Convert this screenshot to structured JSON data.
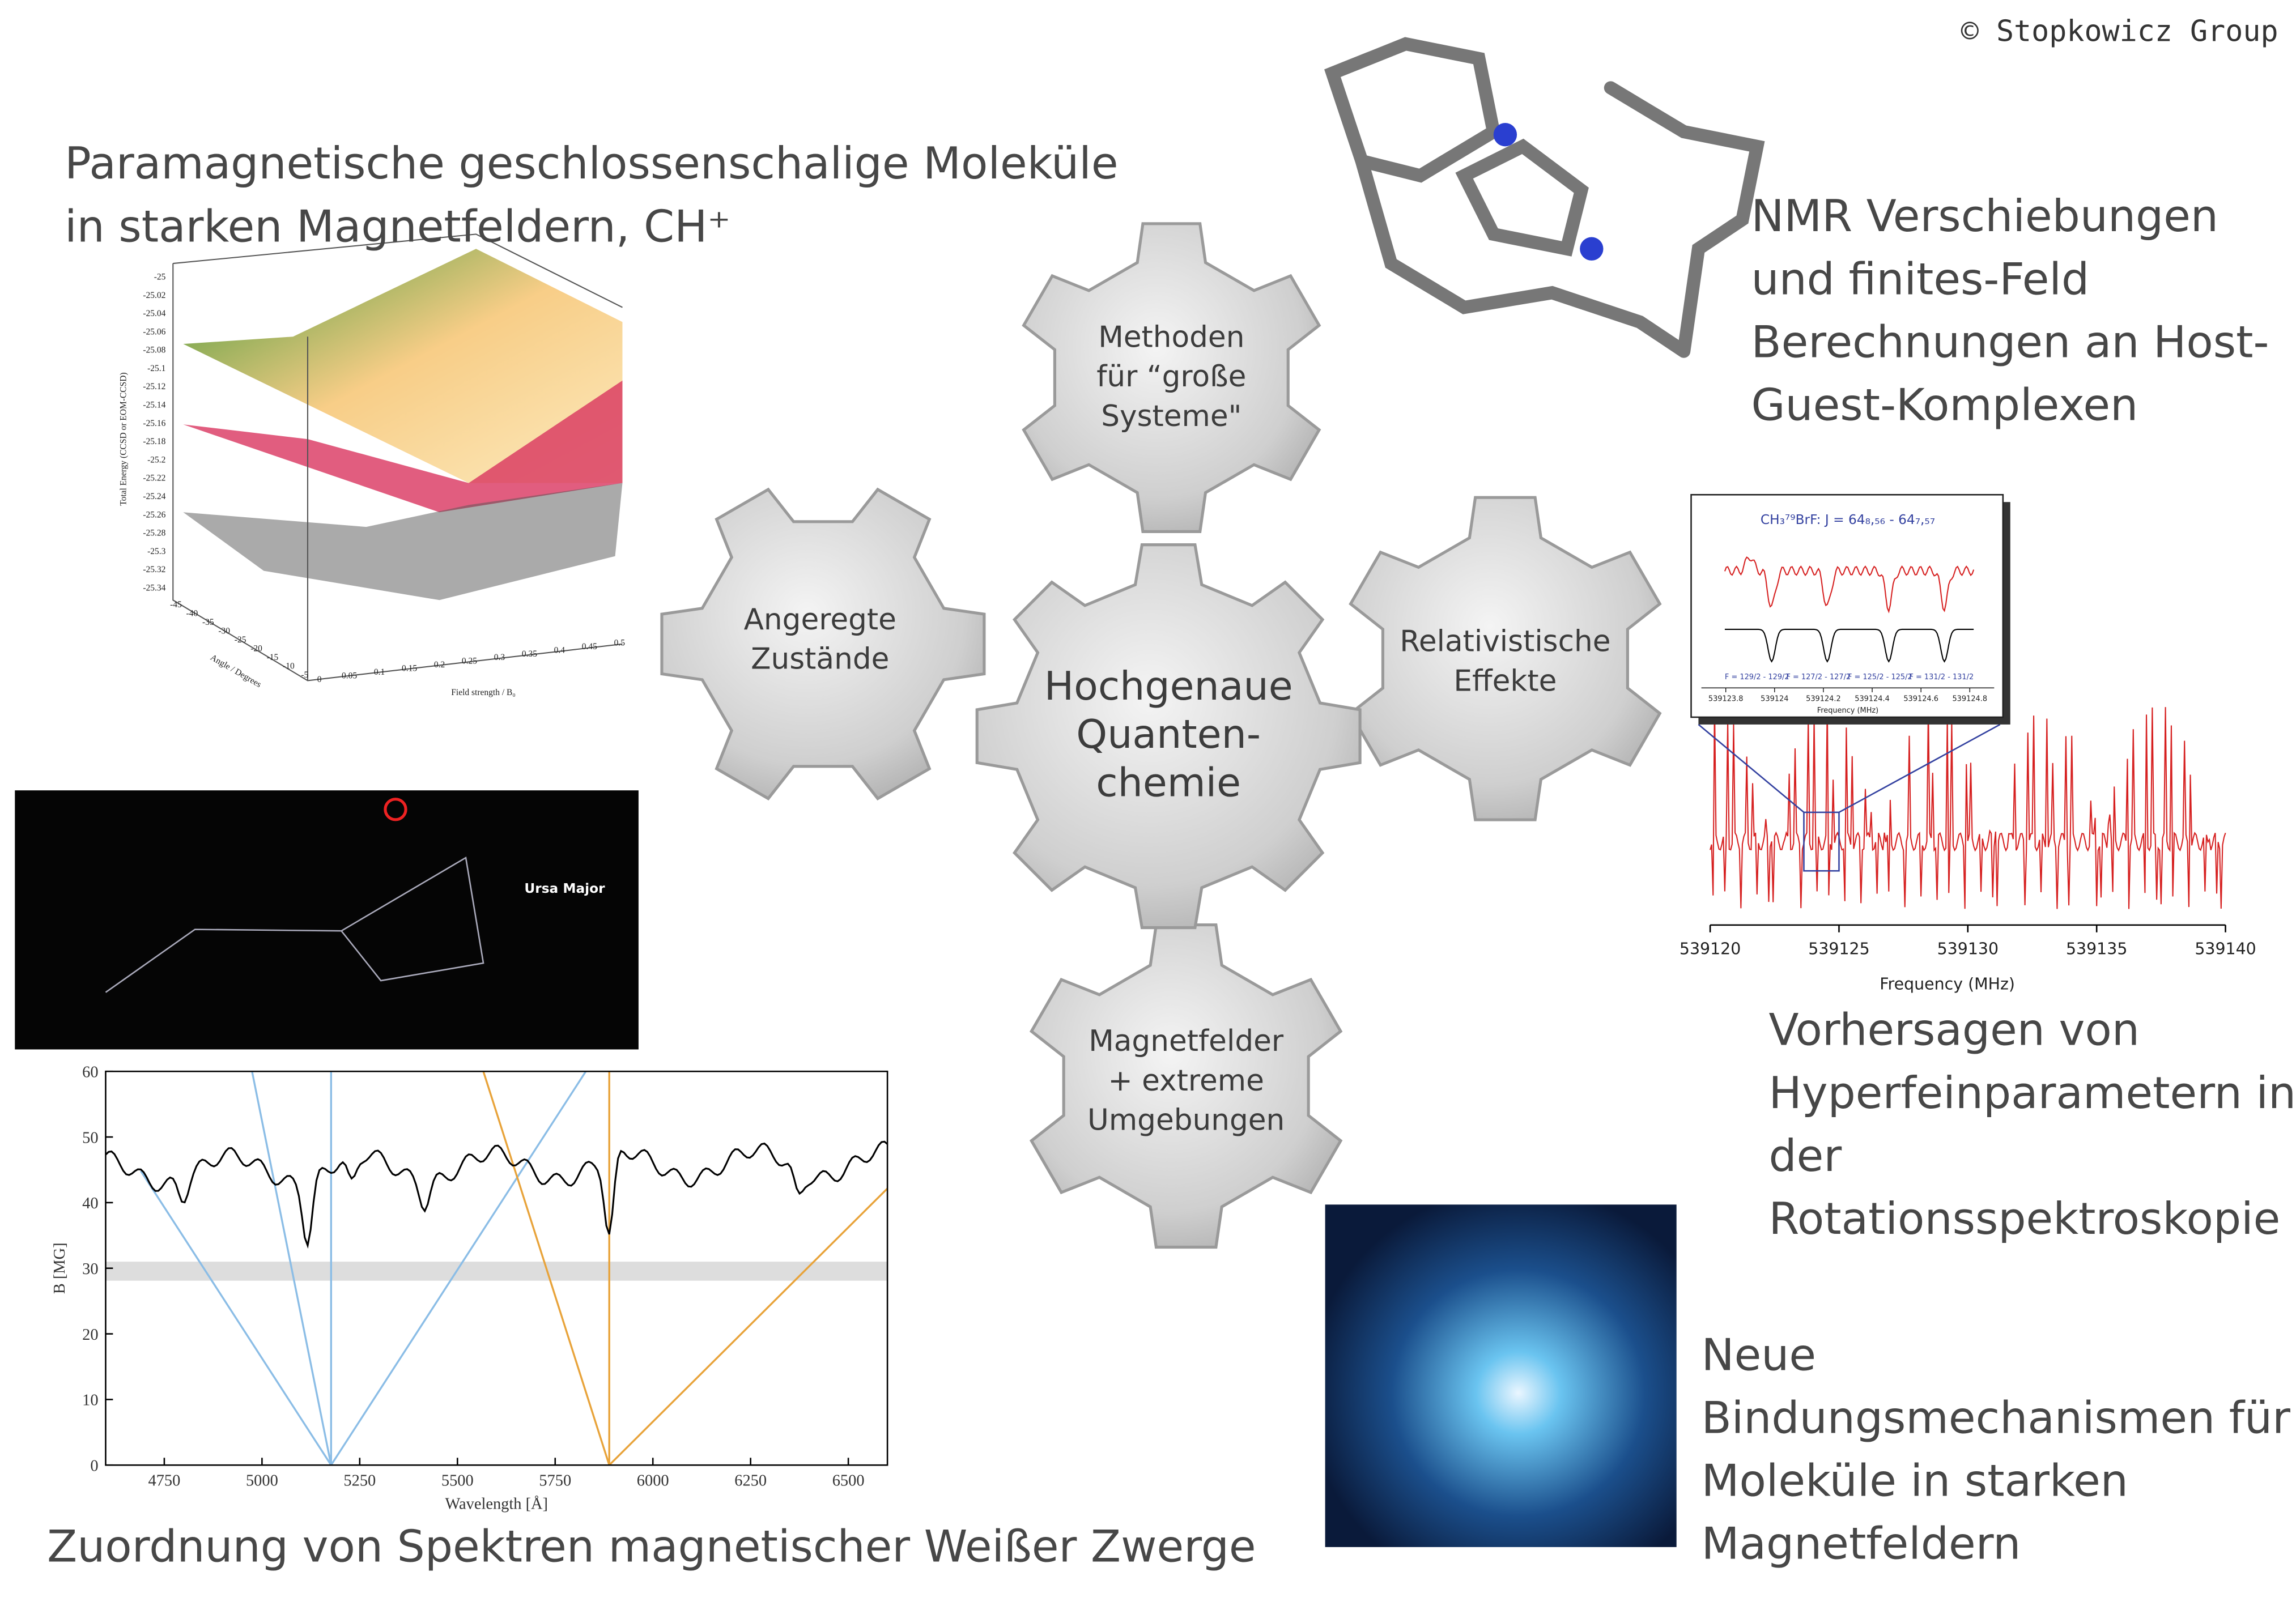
{
  "copyright": "© Stopkowicz Group",
  "center": {
    "lines": [
      "Hochgenaue",
      "Quanten-",
      "chemie"
    ]
  },
  "gears": [
    {
      "lines": [
        "Methoden",
        "für  “große",
        "Systeme\""
      ]
    },
    {
      "lines": [
        "Angeregte",
        "Zustände"
      ]
    },
    {
      "lines": [
        "Relativistische",
        "Effekte"
      ]
    },
    {
      "lines": [
        "Magnetfelder",
        "+ extreme",
        "Umgebungen"
      ]
    }
  ],
  "topics": [
    {
      "lines": [
        "Paramagnetische geschlossenschalige Moleküle",
        "in starken Magnetfeldern, CH⁺"
      ]
    },
    {
      "lines": [
        "NMR Verschiebungen",
        "und finites-Feld",
        "Berechnungen an Host-",
        "Guest-Komplexen"
      ]
    },
    {
      "lines": [
        "Vorhersagen von",
        "Hyperfeinparametern in",
        "der",
        "Rotationsspektroskopie"
      ]
    },
    {
      "lines": [
        "Neue",
        "Bindungsmechanismen für",
        "Moleküle in starken",
        "Magnetfeldern"
      ]
    },
    {
      "lines": [
        "Zuordnung von Spektren magnetischer Weißer Zwerge"
      ]
    }
  ],
  "surface_plot": {
    "y_label": "Total Energy (CCSD or EOM-CCSD)",
    "yticks": [
      -25,
      -25.02,
      -25.04,
      -25.06,
      -25.08,
      -25.1,
      -25.12,
      -25.14,
      -25.16,
      -25.18,
      -25.2,
      -25.22,
      -25.24,
      -25.26,
      -25.28,
      -25.3,
      -25.32,
      -25.34
    ],
    "x_label": "Field strength / B₀",
    "xticks": [
      0,
      0.05,
      0.1,
      0.15,
      0.2,
      0.25,
      0.3,
      0.35,
      0.4,
      0.45,
      0.5
    ],
    "z_label": "Angle / Degrees",
    "zticks": [
      -45,
      -40,
      -35,
      -30,
      -25,
      -20,
      -15,
      -10,
      -5
    ]
  },
  "sky_map": {
    "label": "Ursa Major"
  },
  "white_dwarf_plot": {
    "x_label": "Wavelength [Å]",
    "y_label": "B [MG]",
    "xlim": [
      4600,
      6600
    ],
    "ylim": [
      0,
      60
    ],
    "xticks": [
      4750,
      5000,
      5250,
      5500,
      5750,
      6000,
      6250,
      6500
    ],
    "yticks": [
      0,
      10,
      20,
      30,
      40,
      50,
      60
    ]
  },
  "spectrum_plot": {
    "x_label": "Frequency  (MHz)",
    "xlim": [
      539120,
      539140
    ],
    "xticks": [
      539120,
      539125,
      539130,
      539135,
      539140
    ],
    "inset": {
      "title": "CH₃⁷⁹BrF: J = 64₈,₅₆ - 64₇,₅₇",
      "labels": [
        "F = 129/2 - 129/2",
        "F = 127/2 - 127/2",
        "F = 125/2 - 125/2",
        "F = 131/2 - 131/2"
      ],
      "xlim": [
        539123.7,
        539124.9
      ],
      "xticks": [
        539123.8,
        539124,
        539124.2,
        539124.4,
        539124.6,
        539124.8
      ],
      "x_label": "Frequency (MHz)"
    }
  }
}
